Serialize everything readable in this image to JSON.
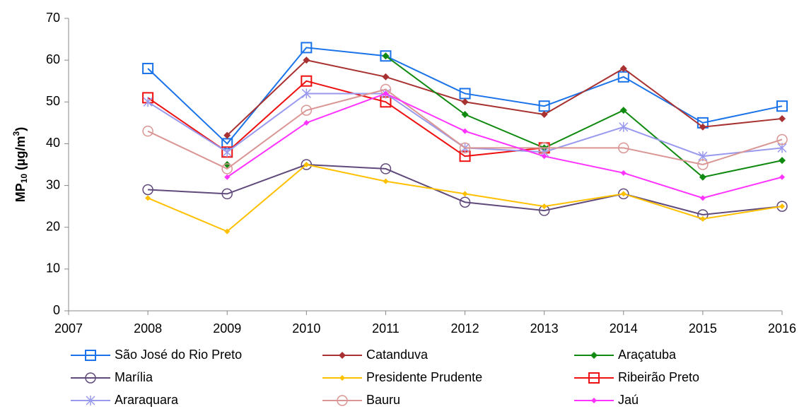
{
  "chart_data": {
    "type": "line",
    "y_label": {
      "main": "MP",
      "sub": "10",
      "mid": " (µg/m",
      "sup": "3",
      "end": ")"
    },
    "x": [
      2008,
      2009,
      2010,
      2011,
      2012,
      2013,
      2014,
      2015,
      2016
    ],
    "xlim": [
      2007,
      2016
    ],
    "xticks": [
      2007,
      2008,
      2009,
      2010,
      2011,
      2012,
      2013,
      2014,
      2015,
      2016
    ],
    "ylim": [
      0,
      70
    ],
    "yticks": [
      0,
      10,
      20,
      30,
      40,
      50,
      60,
      70
    ],
    "legend": "bottom",
    "series": [
      {
        "name": "São José do Rio Preto",
        "color": "#1a73e8",
        "marker": "square",
        "values": [
          58,
          40,
          63,
          61,
          52,
          49,
          56,
          45,
          49
        ]
      },
      {
        "name": "Catanduva",
        "color": "#a83232",
        "marker": "diamond",
        "values": [
          null,
          42,
          60,
          56,
          50,
          47,
          58,
          44,
          46
        ]
      },
      {
        "name": "Araçatuba",
        "color": "#108a10",
        "marker": "diamond",
        "values": [
          null,
          35,
          null,
          61,
          47,
          39,
          48,
          32,
          36
        ]
      },
      {
        "name": "Marília",
        "color": "#604a7b",
        "marker": "circle",
        "values": [
          29,
          28,
          35,
          34,
          26,
          24,
          28,
          23,
          25
        ]
      },
      {
        "name": "Presidente Prudente",
        "color": "#ffc000",
        "marker": "small-diamond",
        "values": [
          27,
          19,
          35,
          31,
          28,
          25,
          28,
          22,
          25
        ]
      },
      {
        "name": "Ribeirão Preto",
        "color": "#ee1111",
        "marker": "square",
        "values": [
          51,
          38,
          55,
          50,
          37,
          39,
          null,
          null,
          null
        ]
      },
      {
        "name": "Araraquara",
        "color": "#9999ee",
        "marker": "star",
        "values": [
          50,
          38,
          52,
          52,
          39,
          38,
          44,
          37,
          39
        ]
      },
      {
        "name": "Bauru",
        "color": "#d99694",
        "marker": "circle",
        "values": [
          43,
          34,
          48,
          53,
          39,
          39,
          39,
          35,
          41
        ]
      },
      {
        "name": "Jaú",
        "color": "#ff33ff",
        "marker": "small-diamond",
        "values": [
          null,
          32,
          45,
          52,
          43,
          37,
          33,
          27,
          32
        ]
      }
    ]
  }
}
